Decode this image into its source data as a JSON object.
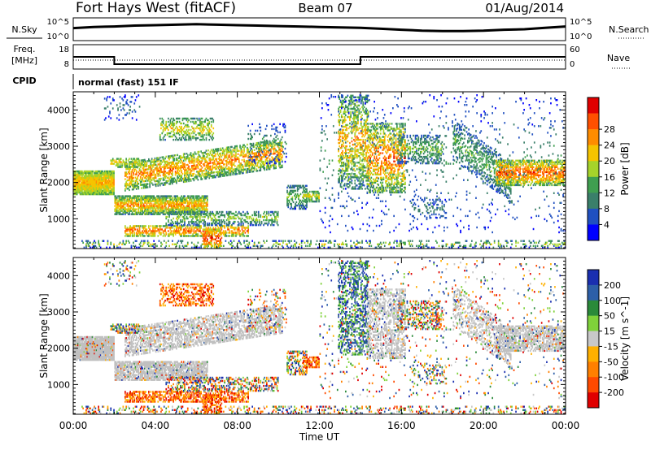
{
  "header": {
    "station": "Fort Hays West (fitACF)",
    "beam": "Beam 07",
    "date": "01/Aug/2014"
  },
  "labels": {
    "n_sky": "N.Sky",
    "n_search": "N.Search",
    "freq": "Freq.",
    "freq_unit": "[MHz]",
    "nave": "Nave",
    "cpid": "CPID",
    "cpid_value": "normal (fast) 151 IF",
    "noise_tick_top": "10^5",
    "noise_tick_bottom": "10^0",
    "freq_tick_top": "18",
    "freq_tick_bottom": "8",
    "nave_tick_top": "60",
    "nave_tick_bottom": "0"
  },
  "colors": {
    "power_scale": [
      "#0000ff",
      "#2050c0",
      "#3a7f6a",
      "#3f9f50",
      "#a6d32a",
      "#f5c400",
      "#ff8c00",
      "#ff5000",
      "#e00000"
    ],
    "velocity_scale": [
      "#1a2fb0",
      "#2d5fa8",
      "#2a8a3a",
      "#7fd23a",
      "#c8c8c8",
      "#ffb000",
      "#ff8000",
      "#ff4a00",
      "#e00000"
    ],
    "ground_scatter": "#c0c0c0"
  },
  "chart_data": [
    {
      "type": "line",
      "panel": "noise",
      "ylabel": "N.Sky",
      "ylabel_right": "N.Search",
      "yscale": "log",
      "yticks": [
        "10^5",
        "10^0"
      ],
      "series": [
        {
          "name": "N.Sky",
          "x": [
            0,
            1,
            2,
            3,
            4,
            5,
            6,
            7,
            8,
            9,
            10,
            11,
            12,
            13,
            14,
            15,
            16,
            17,
            18,
            19,
            20,
            21,
            22,
            23,
            24
          ],
          "values_rel": [
            0.55,
            0.6,
            0.62,
            0.66,
            0.68,
            0.7,
            0.72,
            0.7,
            0.68,
            0.66,
            0.64,
            0.62,
            0.6,
            0.58,
            0.56,
            0.52,
            0.48,
            0.44,
            0.42,
            0.42,
            0.44,
            0.48,
            0.5,
            0.56,
            0.62
          ]
        }
      ]
    },
    {
      "type": "line",
      "panel": "frequency",
      "ylabel": "Freq. [MHz]",
      "ylabel_right": "Nave",
      "ylim": [
        8,
        18
      ],
      "ylim_right": [
        0,
        60
      ],
      "series": [
        {
          "name": "Freq.",
          "x": [
            0,
            2,
            2,
            14,
            14,
            24
          ],
          "values": [
            13,
            13,
            10,
            10,
            13,
            13
          ]
        },
        {
          "name": "Nave",
          "x": [
            0,
            24
          ],
          "values": [
            1,
            1
          ]
        }
      ]
    },
    {
      "type": "heatmap",
      "panel": "power",
      "title": "",
      "xlabel": "",
      "ylabel": "Slant Range [km]",
      "colorbar_label": "Power [dB]",
      "colorbar_ticks": [
        "4",
        "8",
        "12",
        "16",
        "20",
        "24",
        "28"
      ],
      "xlim": [
        "00:00",
        "24:00"
      ],
      "ylim": [
        180,
        4500
      ],
      "yticks": [
        1000,
        2000,
        3000,
        4000
      ],
      "xticks": [
        "00:00",
        "04:00",
        "08:00",
        "12:00",
        "16:00",
        "20:00",
        "00:00"
      ]
    },
    {
      "type": "heatmap",
      "panel": "velocity",
      "ylabel": "Slant Range [km]",
      "xlabel": "Time UT",
      "colorbar_label": "Velocity [m s^-1]",
      "colorbar_ticks": [
        "200",
        "100",
        "50",
        "15",
        "-15",
        "-50",
        "-100",
        "-200"
      ],
      "xlim": [
        "00:00",
        "24:00"
      ],
      "ylim": [
        180,
        4500
      ],
      "yticks": [
        1000,
        2000,
        3000,
        4000
      ],
      "xticks": [
        "00:00",
        "04:00",
        "08:00",
        "12:00",
        "16:00",
        "20:00",
        "00:00"
      ]
    }
  ]
}
